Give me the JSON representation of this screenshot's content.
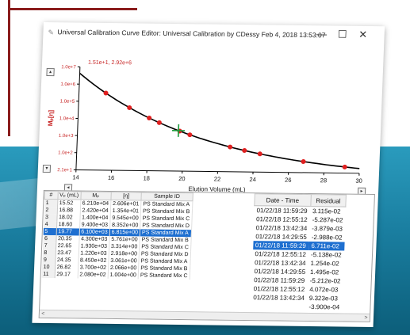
{
  "window": {
    "title": "Universal Calibration Curve Editor: Universal Calibration by CDessy  Feb 4, 2018  13:53:07",
    "minimize": "—",
    "maximize": "☐",
    "close": "✕"
  },
  "chart_data": {
    "type": "line",
    "annotation": "1.51e+1, 2.92e+6",
    "xlabel": "Elution Volume (mL)",
    "ylabel": "Mₚ[η]",
    "xlim": [
      14,
      30
    ],
    "x_ticks": [
      "14",
      "16",
      "18",
      "20",
      "22",
      "24",
      "26",
      "28",
      "30"
    ],
    "y_ticks": [
      "1.0e+7",
      "1.0e+6",
      "1.0e+5",
      "1.0e+4",
      "1.0e+3",
      "1.0e+2",
      "2.1e+1"
    ],
    "log_y": true,
    "points_x": [
      15.52,
      16.88,
      18.02,
      18.6,
      19.77,
      20.35,
      22.65,
      23.47,
      24.35,
      26.82,
      29.17
    ],
    "fit_line": true,
    "cursor_x": 19.7
  },
  "table": {
    "headers": [
      "#",
      "Vₚ (mL)",
      "Mₚ",
      "[η]",
      "Sample ID"
    ],
    "rows": [
      [
        "1",
        "15.52",
        "6.210e+04",
        "2.606e+01",
        "PS Standard Mix A"
      ],
      [
        "2",
        "16.88",
        "2.420e+04",
        "1.354e+01",
        "PS Standard Mix B"
      ],
      [
        "3",
        "18.02",
        "1.400e+04",
        "9.545e+00",
        "PS Standard Mix C"
      ],
      [
        "4",
        "18.60",
        "9.400e+03",
        "8.352e+00",
        "PS Standard Mix D"
      ],
      [
        "5",
        "19.77",
        "6.100e+03",
        "6.815e+00",
        "PS Standard Mix A"
      ],
      [
        "6",
        "20.35",
        "4.300e+03",
        "5.761e+00",
        "PS Standard Mix B"
      ],
      [
        "7",
        "22.65",
        "1.930e+03",
        "3.314e+00",
        "PS Standard Mix C"
      ],
      [
        "8",
        "23.47",
        "1.220e+03",
        "2.918e+00",
        "PS Standard Mix D"
      ],
      [
        "9",
        "24.35",
        "8.450e+02",
        "3.061e+00",
        "PS Standard Mix A"
      ],
      [
        "10",
        "26.82",
        "3.700e+02",
        "2.066e+00",
        "PS Standard Mix B"
      ],
      [
        "11",
        "29.17",
        "2.080e+02",
        "1.004e+00",
        "PS Standard Mix C"
      ]
    ],
    "selected_row": 4
  },
  "detail_table": {
    "headers": [
      "Date - Time",
      "Residual"
    ],
    "rows": [
      [
        "01/22/18  11:59:29",
        "3.115e-02"
      ],
      [
        "01/22/18  12:55:12",
        "-5.287e-02"
      ],
      [
        "01/22/18  13:42:34",
        "-3.879e-03"
      ],
      [
        "01/22/18  14:29:55",
        "-2.988e-02"
      ],
      [
        "01/22/18  11:59:29",
        "6.711e-02"
      ],
      [
        "01/22/18  12:55:12",
        "-5.138e-02"
      ],
      [
        "01/22/18  13:42:34",
        "1.254e-02"
      ],
      [
        "01/22/18  14:29:55",
        "1.495e-02"
      ],
      [
        "01/22/18  11:59:29",
        "-5.212e-02"
      ],
      [
        "01/22/18  12:55:12",
        "4.072e-03"
      ],
      [
        "01/22/18  13:42:34",
        "9.323e-03"
      ],
      [
        "",
        "-3.900e-04"
      ]
    ],
    "selected_row": 4
  },
  "colors": {
    "accent": "#1e6fd0",
    "points": "#e02020",
    "axis_label": "#c62020",
    "band": "#1a7ea0"
  },
  "scroll": {
    "left": "<",
    "right": ">"
  }
}
